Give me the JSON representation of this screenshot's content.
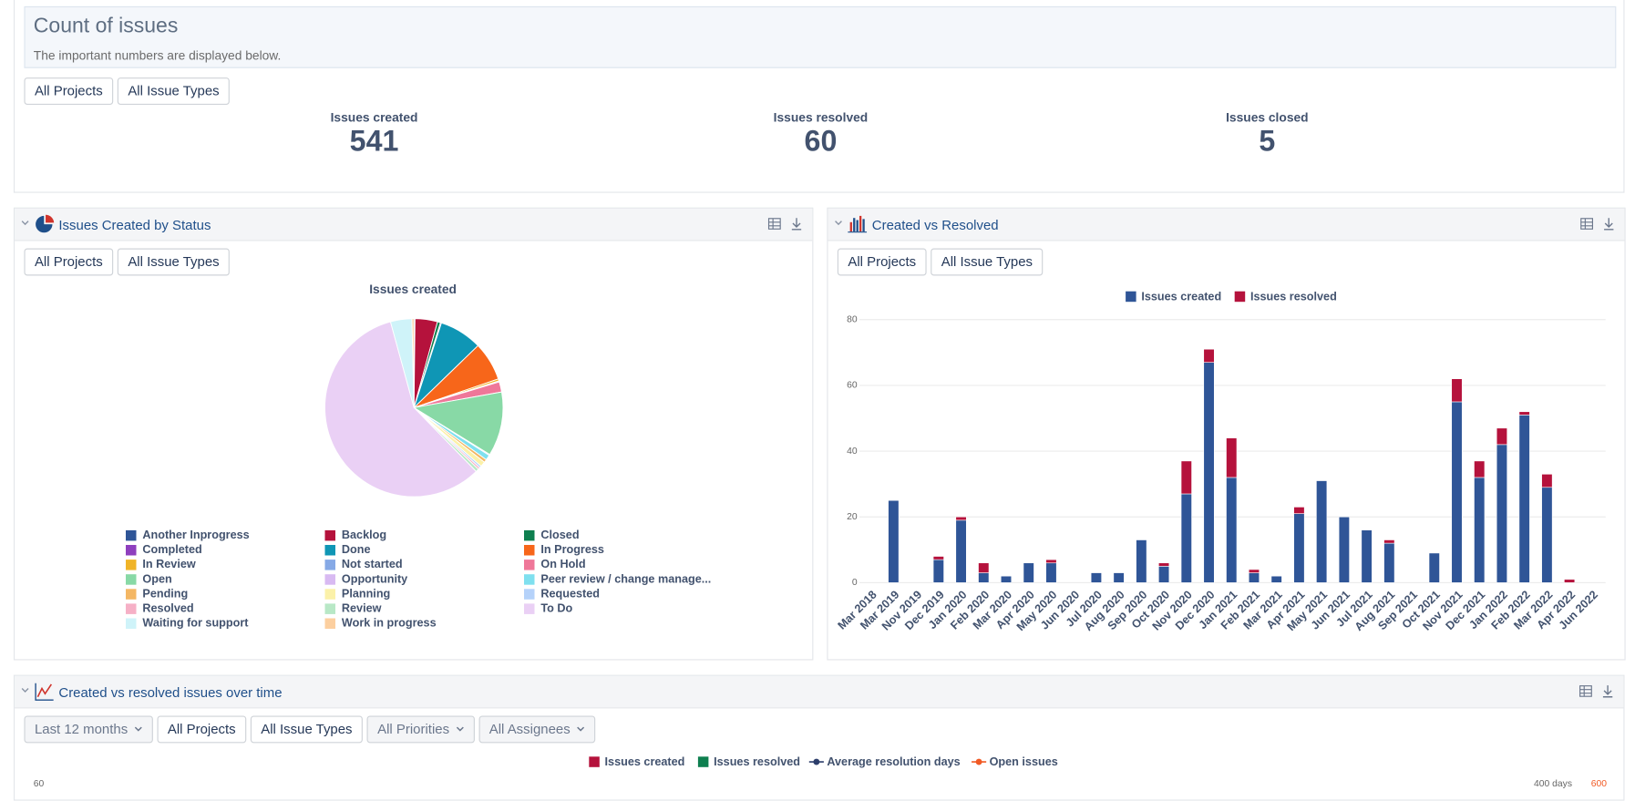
{
  "header": {
    "title": "Count of issues",
    "subtitle": "The important numbers are displayed below.",
    "filters": [
      "All Projects",
      "All Issue Types"
    ]
  },
  "kpis": [
    {
      "label": "Issues created",
      "value": 541
    },
    {
      "label": "Issues resolved",
      "value": 60
    },
    {
      "label": "Issues closed",
      "value": 5
    }
  ],
  "panels": [
    {
      "title": "Issues Created by Status",
      "filters": [
        "All Projects",
        "All Issue Types"
      ]
    },
    {
      "title": "Created vs Resolved",
      "filters": [
        "All Projects",
        "All Issue Types"
      ]
    },
    {
      "title": "Created vs resolved issues over time",
      "filters": [
        {
          "label": "Last 12 months",
          "dropdown": true
        },
        "All Projects",
        "All Issue Types",
        {
          "label": "All Priorities",
          "dropdown": true
        },
        {
          "label": "All Assignees",
          "dropdown": true
        }
      ],
      "legend": [
        {
          "name": "Issues created",
          "color": "#b5123c",
          "marker": "square"
        },
        {
          "name": "Issues resolved",
          "color": "#0e7f4f",
          "marker": "square"
        },
        {
          "name": "Average resolution days",
          "color": "#2c3e6b",
          "marker": "line"
        },
        {
          "name": "Open issues",
          "color": "#f15a24",
          "marker": "line"
        }
      ],
      "left_tick": 60,
      "right_ticks": [
        {
          "value": 400,
          "label": "400 days"
        },
        600
      ]
    }
  ],
  "chart_data": [
    {
      "type": "pie",
      "title": "Issues created",
      "categories": [
        "Another Inprogress",
        "Backlog",
        "Closed",
        "Completed",
        "Done",
        "In Progress",
        "In Review",
        "Not started",
        "On Hold",
        "Open",
        "Opportunity",
        "Peer review / change manage...",
        "Pending",
        "Planning",
        "Requested",
        "Resolved",
        "Review",
        "To Do",
        "Waiting for support",
        "Work in progress"
      ],
      "values": [
        1,
        22,
        3,
        1,
        42,
        38,
        2,
        1,
        10,
        63,
        1,
        5,
        3,
        5,
        2,
        2,
        3,
        314,
        21,
        2
      ],
      "colors": [
        "#2f5597",
        "#b5123c",
        "#0e7f4f",
        "#8e3fbe",
        "#0f96b5",
        "#f7661a",
        "#f0b428",
        "#86a9e6",
        "#ef7799",
        "#88d9a6",
        "#d8baf2",
        "#7fe0ef",
        "#f4b764",
        "#fbf1a9",
        "#b5d2fa",
        "#f6b0c6",
        "#b8e8c6",
        "#ead0f5",
        "#cff3f9",
        "#fccf9f"
      ]
    },
    {
      "type": "bar",
      "stacked": true,
      "grid": true,
      "categories": [
        "Mar 2018",
        "Mar 2019",
        "Nov 2019",
        "Dec 2019",
        "Jan 2020",
        "Feb 2020",
        "Mar 2020",
        "Apr 2020",
        "May 2020",
        "Jun 2020",
        "Jul 2020",
        "Aug 2020",
        "Sep 2020",
        "Oct 2020",
        "Nov 2020",
        "Dec 2020",
        "Jan 2021",
        "Feb 2021",
        "Mar 2021",
        "Apr 2021",
        "May 2021",
        "Jun 2021",
        "Jul 2021",
        "Aug 2021",
        "Sep 2021",
        "Oct 2021",
        "Nov 2021",
        "Dec 2021",
        "Jan 2022",
        "Feb 2022",
        "Mar 2022",
        "Apr 2022",
        "Jun 2022"
      ],
      "series": [
        {
          "name": "Issues created",
          "color": "#2f5597",
          "values": [
            0,
            25,
            0,
            7,
            19,
            3,
            2,
            6,
            6,
            0,
            3,
            3,
            13,
            5,
            27,
            67,
            32,
            3,
            2,
            21,
            31,
            20,
            16,
            12,
            0,
            9,
            55,
            32,
            42,
            51,
            29,
            0,
            0
          ]
        },
        {
          "name": "Issues resolved",
          "color": "#b5123c",
          "values": [
            0,
            0,
            0,
            1,
            1,
            3,
            0,
            0,
            1,
            0,
            0,
            0,
            0,
            1,
            10,
            4,
            12,
            1,
            0,
            2,
            0,
            0,
            0,
            1,
            0,
            0,
            7,
            5,
            5,
            1,
            4,
            1,
            0
          ]
        }
      ],
      "ylim": [
        0,
        80
      ],
      "yticks": [
        0,
        20,
        40,
        60,
        80
      ]
    }
  ]
}
